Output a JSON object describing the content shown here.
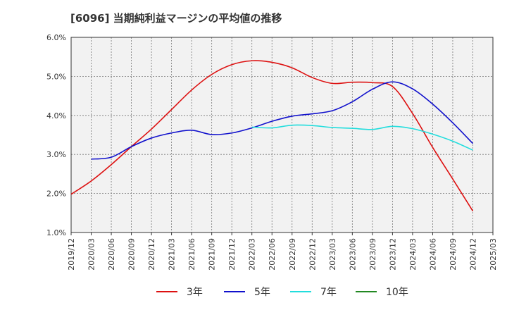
{
  "chart_data": {
    "type": "line",
    "title": "[6096]  当期純利益マージンの平均値の推移",
    "xlabel": "",
    "ylabel": "",
    "ylim": [
      1.0,
      6.0
    ],
    "y_ticks": [
      "1.0%",
      "2.0%",
      "3.0%",
      "4.0%",
      "5.0%",
      "6.0%"
    ],
    "x_ticks": [
      "2019/12",
      "2020/03",
      "2020/06",
      "2020/09",
      "2020/12",
      "2021/03",
      "2021/06",
      "2021/09",
      "2021/12",
      "2022/03",
      "2022/06",
      "2022/09",
      "2022/12",
      "2023/03",
      "2023/06",
      "2023/09",
      "2023/12",
      "2024/03",
      "2024/06",
      "2024/09",
      "2024/12",
      "2025/03"
    ],
    "grid": true,
    "legend_position": "bottom",
    "series": [
      {
        "name": "3年",
        "color": "#dd1111",
        "x": [
          "2019/12",
          "2020/03",
          "2020/06",
          "2020/09",
          "2020/12",
          "2021/03",
          "2021/06",
          "2021/09",
          "2021/12",
          "2022/03",
          "2022/06",
          "2022/09",
          "2022/12",
          "2023/03",
          "2023/06",
          "2023/09",
          "2023/12",
          "2024/03",
          "2024/06",
          "2024/09",
          "2024/12"
        ],
        "values": [
          1.98,
          2.32,
          2.74,
          3.2,
          3.65,
          4.15,
          4.65,
          5.05,
          5.3,
          5.4,
          5.36,
          5.22,
          4.97,
          4.82,
          4.85,
          4.84,
          4.74,
          4.05,
          3.18,
          2.37,
          1.55
        ]
      },
      {
        "name": "5年",
        "color": "#1111cc",
        "x": [
          "2020/03",
          "2020/06",
          "2020/09",
          "2020/12",
          "2021/03",
          "2021/06",
          "2021/09",
          "2021/12",
          "2022/03",
          "2022/06",
          "2022/09",
          "2022/12",
          "2023/03",
          "2023/06",
          "2023/09",
          "2023/12",
          "2024/03",
          "2024/06",
          "2024/09",
          "2024/12"
        ],
        "values": [
          2.88,
          2.93,
          3.2,
          3.42,
          3.55,
          3.62,
          3.51,
          3.55,
          3.68,
          3.85,
          3.98,
          4.04,
          4.12,
          4.35,
          4.67,
          4.86,
          4.68,
          4.29,
          3.81,
          3.28
        ]
      },
      {
        "name": "7年",
        "color": "#22dddd",
        "x": [
          "2022/03",
          "2022/06",
          "2022/09",
          "2022/12",
          "2023/03",
          "2023/06",
          "2023/09",
          "2023/12",
          "2024/03",
          "2024/06",
          "2024/09",
          "2024/12"
        ],
        "values": [
          3.7,
          3.68,
          3.75,
          3.74,
          3.69,
          3.67,
          3.64,
          3.72,
          3.66,
          3.52,
          3.34,
          3.11
        ]
      },
      {
        "name": "10年",
        "color": "#228822",
        "x": [],
        "values": []
      }
    ]
  }
}
